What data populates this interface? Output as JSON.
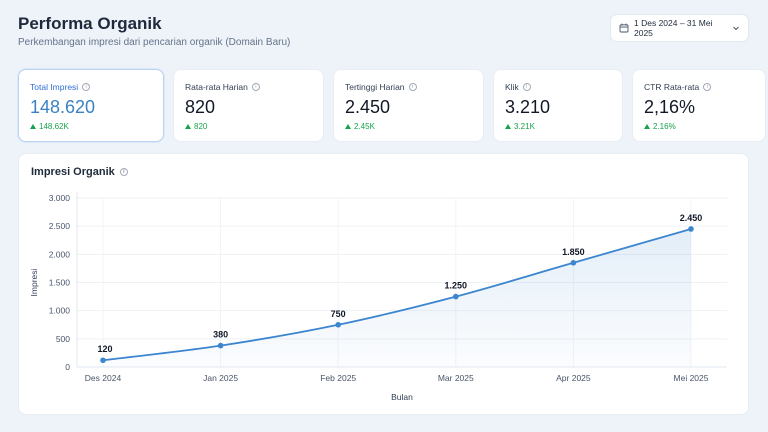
{
  "header": {
    "title": "Performa Organik",
    "subtitle": "Perkembangan impresi dari pencarian organik (Domain Baru)",
    "date_range": "1 Des 2024 – 31 Mei 2025"
  },
  "kpis": [
    {
      "label": "Total Impresi",
      "value": "148.620",
      "delta": "148.62K",
      "active": true
    },
    {
      "label": "Rata-rata Harian",
      "value": "820",
      "delta": "820",
      "active": false
    },
    {
      "label": "Tertinggi Harian",
      "value": "2.450",
      "delta": "2.45K",
      "active": false
    },
    {
      "label": "Klik",
      "value": "3.210",
      "delta": "3.21K",
      "active": false
    },
    {
      "label": "CTR Rata-rata",
      "value": "2,16%",
      "delta": "2.16%",
      "active": false
    }
  ],
  "chart": {
    "title": "Impresi Organik"
  },
  "colors": {
    "accent": "#3b82c4",
    "positive": "#16a34a",
    "line": "#3b86cf"
  },
  "chart_data": {
    "type": "line",
    "categories": [
      "Des 2024",
      "Jan 2025",
      "Feb 2025",
      "Mar 2025",
      "Apr 2025",
      "Mei 2025"
    ],
    "values": [
      120,
      380,
      750,
      1250,
      1850,
      2450
    ],
    "value_labels": [
      "120",
      "380",
      "750",
      "1.250",
      "1.850",
      "2.450"
    ],
    "yticks": [
      0,
      500,
      1000,
      1500,
      2000,
      2500,
      3000
    ],
    "ytick_labels": [
      "0",
      "500",
      "1.000",
      "1.500",
      "2.000",
      "2.500",
      "3.000"
    ],
    "ylim": [
      0,
      3000
    ],
    "xlabel": "Bulan",
    "ylabel": "Impresi",
    "grid": true,
    "area_fill": true
  }
}
